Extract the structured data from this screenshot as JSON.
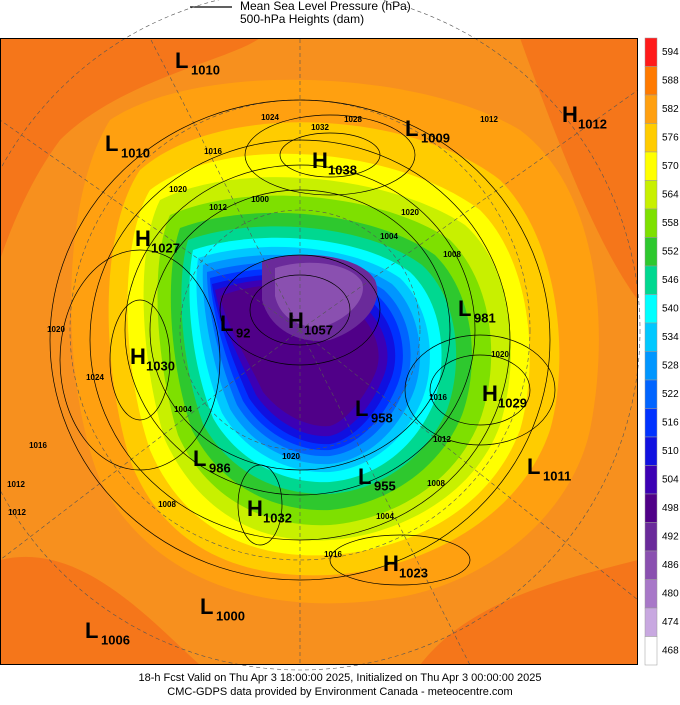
{
  "header": {
    "mslp_label": "Mean Sea Level Pressure (hPa)",
    "height_label": "500-hPa Heights (dam)"
  },
  "colorbar": {
    "ticks": [
      594,
      588,
      582,
      576,
      570,
      564,
      558,
      552,
      546,
      540,
      534,
      528,
      522,
      516,
      510,
      504,
      498,
      492,
      486,
      480,
      474,
      468
    ],
    "colors": [
      "#ff1a1a",
      "#ff7a00",
      "#ffa010",
      "#ffcc00",
      "#ffff00",
      "#c8f000",
      "#7ee000",
      "#2ec82e",
      "#00d890",
      "#00ffff",
      "#00c8ff",
      "#0096ff",
      "#0064ff",
      "#0032ff",
      "#1010e0",
      "#3c00b4",
      "#500088",
      "#6a2a9a",
      "#8a50b0",
      "#a878c8",
      "#c8a8e0",
      "#ffffff"
    ]
  },
  "centers": [
    {
      "kind": "L",
      "value": "1010"
    },
    {
      "kind": "L",
      "value": "1010"
    },
    {
      "kind": "H",
      "value": "1027"
    },
    {
      "kind": "H",
      "value": "1030"
    },
    {
      "kind": "L",
      "value": "986"
    },
    {
      "kind": "H",
      "value": "1032"
    },
    {
      "kind": "L",
      "value": "1000"
    },
    {
      "kind": "L",
      "value": "1006"
    },
    {
      "kind": "H",
      "value": "1038"
    },
    {
      "kind": "L",
      "value": "1009"
    },
    {
      "kind": "H",
      "value": "1012"
    },
    {
      "kind": "L",
      "value": "981"
    },
    {
      "kind": "L",
      "value": "92"
    },
    {
      "kind": "H",
      "value": "1057"
    },
    {
      "kind": "L",
      "value": "958"
    },
    {
      "kind": "L",
      "value": "955"
    },
    {
      "kind": "H",
      "value": "1029"
    },
    {
      "kind": "L",
      "value": "1011"
    },
    {
      "kind": "H",
      "value": "1023"
    }
  ],
  "contour_labels": [
    1024,
    1032,
    1028,
    1016,
    1012,
    1020,
    1012,
    1000,
    1020,
    1004,
    1008,
    1020,
    1024,
    1020,
    1016,
    1012,
    1016,
    1012,
    1008,
    1012,
    1020,
    1004,
    1016,
    1008,
    1004
  ],
  "footer": {
    "valid": "18-h Fcst Valid on Thu Apr  3 18:00:00 2025, Initialized on Thu Apr  3 00:00:00 2025",
    "credit": "CMC-GDPS data provided by Environment Canada - meteocentre.com"
  }
}
